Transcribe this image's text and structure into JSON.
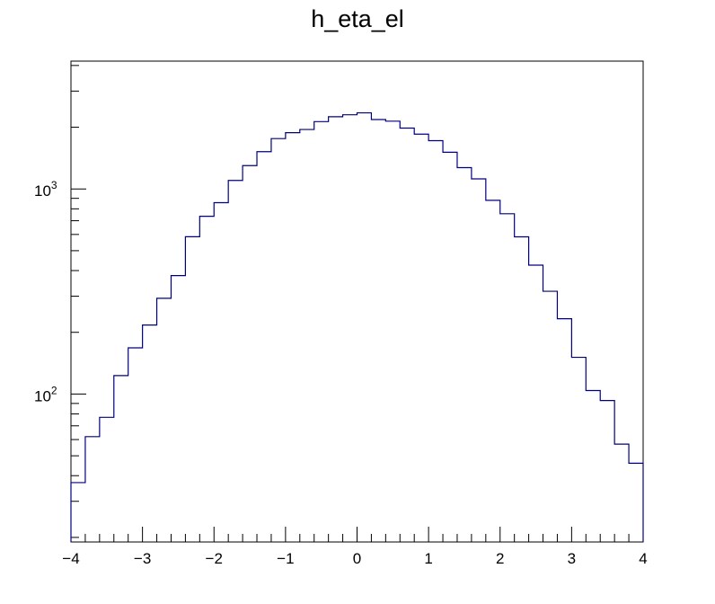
{
  "chart_data": {
    "type": "step-histogram",
    "title": "h_eta_el",
    "xlabel": "",
    "ylabel": "",
    "xlim": [
      -4,
      4
    ],
    "ylim": [
      19,
      4200
    ],
    "y_scale": "log",
    "grid": false,
    "line_color": "#00007f",
    "x_ticks": [
      "−4",
      "−3",
      "−2",
      "−1",
      "0",
      "1",
      "2",
      "3",
      "4"
    ],
    "y_ticks": [
      {
        "value": 100,
        "base": "10",
        "exp": "2"
      },
      {
        "value": 1000,
        "base": "10",
        "exp": "3"
      }
    ],
    "bin_edges": [
      -4.0,
      -3.8,
      -3.6,
      -3.4,
      -3.2,
      -3.0,
      -2.8,
      -2.6,
      -2.4,
      -2.2,
      -2.0,
      -1.8,
      -1.6,
      -1.4,
      -1.2,
      -1.0,
      -0.8,
      -0.6,
      -0.4,
      -0.2,
      0.0,
      0.2,
      0.4,
      0.6,
      0.8,
      1.0,
      1.2,
      1.4,
      1.6,
      1.8,
      2.0,
      2.2,
      2.4,
      2.6,
      2.8,
      3.0,
      3.2,
      3.4,
      3.6,
      3.8,
      4.0
    ],
    "values": [
      37,
      62,
      77,
      123,
      168,
      217,
      293,
      378,
      585,
      736,
      857,
      1100,
      1300,
      1520,
      1760,
      1880,
      1950,
      2130,
      2250,
      2300,
      2350,
      2180,
      2140,
      1980,
      1850,
      1720,
      1510,
      1270,
      1120,
      880,
      757,
      584,
      425,
      317,
      233,
      151,
      104,
      93,
      57,
      46
    ]
  }
}
